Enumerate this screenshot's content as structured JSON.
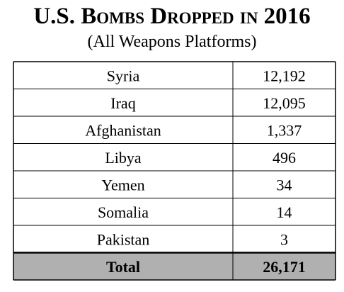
{
  "title": "U.S. Bombs Dropped in 2016",
  "subtitle": "(All Weapons Platforms)",
  "chart_data": {
    "type": "table",
    "title": "U.S. Bombs Dropped in 2016",
    "subtitle": "(All Weapons Platforms)",
    "rows": [
      {
        "label": "Syria",
        "value": "12,192"
      },
      {
        "label": "Iraq",
        "value": "12,095"
      },
      {
        "label": "Afghanistan",
        "value": "1,337"
      },
      {
        "label": "Libya",
        "value": "496"
      },
      {
        "label": "Yemen",
        "value": "34"
      },
      {
        "label": "Somalia",
        "value": "14"
      },
      {
        "label": "Pakistan",
        "value": "3"
      }
    ],
    "total": {
      "label": "Total",
      "value": "26,171"
    },
    "colors": {
      "total_fill": "#b0b0b0",
      "border": "#000000"
    }
  }
}
